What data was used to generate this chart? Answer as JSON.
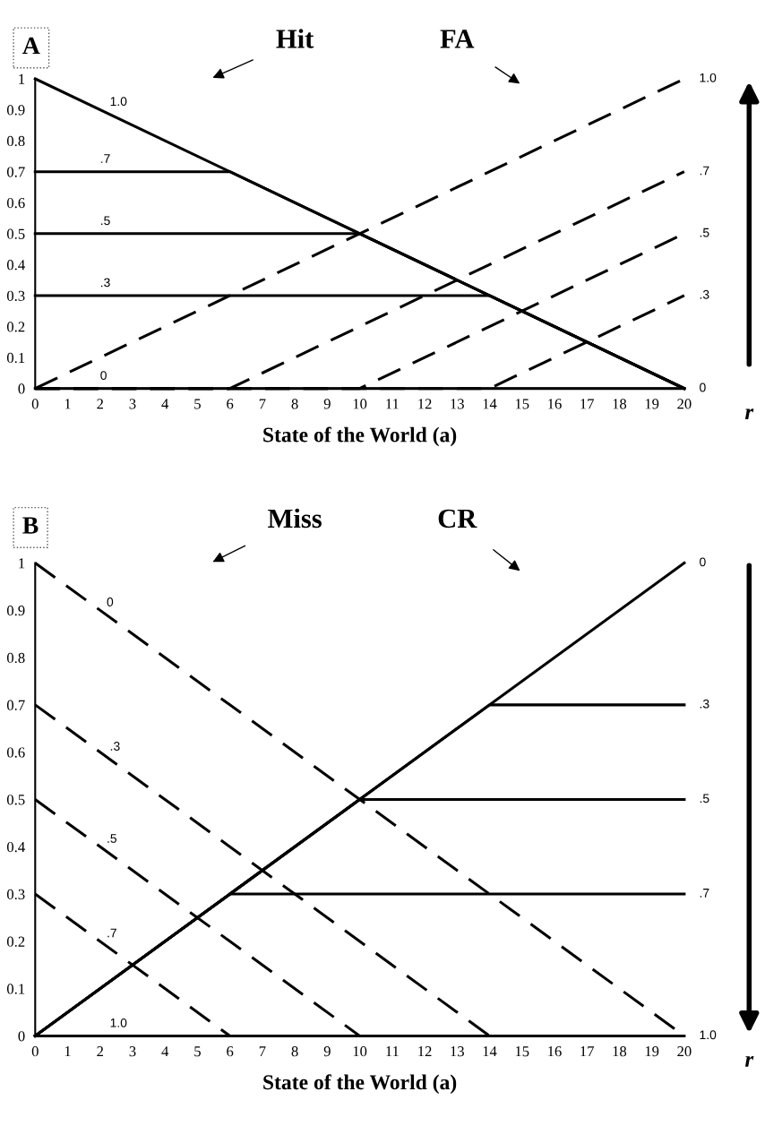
{
  "chart_data": [
    {
      "type": "line",
      "title": "A",
      "xlabel": "State of the World (a)",
      "xlim": [
        0,
        20
      ],
      "ylim": [
        0,
        1
      ],
      "xticks": [
        0,
        1,
        2,
        3,
        4,
        5,
        6,
        7,
        8,
        9,
        10,
        11,
        12,
        13,
        14,
        15,
        16,
        17,
        18,
        19,
        20
      ],
      "yticks": [
        0,
        0.1,
        0.2,
        0.3,
        0.4,
        0.5,
        0.6,
        0.7,
        0.8,
        0.9,
        1
      ],
      "grid": false,
      "legend": false,
      "marker": "none",
      "series": [
        {
          "x": [
            0,
            20
          ],
          "values": [
            1,
            0
          ],
          "color": "#000000",
          "line_style": "solid"
        },
        {
          "x": [
            0,
            6,
            20
          ],
          "values": [
            0.7,
            0.7,
            0
          ],
          "color": "#000000",
          "line_style": "solid"
        },
        {
          "x": [
            0,
            10,
            20
          ],
          "values": [
            0.5,
            0.5,
            0
          ],
          "color": "#000000",
          "line_style": "solid"
        },
        {
          "x": [
            0,
            14,
            20
          ],
          "values": [
            0.3,
            0.3,
            0
          ],
          "color": "#000000",
          "line_style": "solid"
        },
        {
          "x": [
            0,
            20
          ],
          "values": [
            0,
            0
          ],
          "color": "#000000",
          "line_style": "solid"
        },
        {
          "x": [
            0,
            20
          ],
          "values": [
            0,
            1
          ],
          "color": "#000000",
          "line_style": "dashed"
        },
        {
          "x": [
            0,
            6,
            20
          ],
          "values": [
            0,
            0,
            0.7
          ],
          "color": "#000000",
          "line_style": "dashed"
        },
        {
          "x": [
            0,
            10,
            20
          ],
          "values": [
            0,
            0,
            0.5
          ],
          "color": "#000000",
          "line_style": "dashed"
        },
        {
          "x": [
            0,
            14,
            20
          ],
          "values": [
            0,
            0,
            0.3
          ],
          "color": "#000000",
          "line_style": "dashed"
        }
      ],
      "annotations": [
        "Hit",
        "FA",
        "r",
        {
          "text": "1.0",
          "x": 2.3,
          "y": 0.885
        },
        {
          "text": ".7",
          "x": 2,
          "y": 0.7
        },
        {
          "text": ".5",
          "x": 2,
          "y": 0.5
        },
        {
          "text": ".3",
          "x": 2,
          "y": 0.3
        },
        {
          "text": "0",
          "x": 2,
          "y": 0
        },
        {
          "text": "1.0",
          "x": 20,
          "y": 1
        },
        {
          "text": ".7",
          "x": 20,
          "y": 0.7
        },
        {
          "text": ".5",
          "x": 20,
          "y": 0.5
        },
        {
          "text": ".3",
          "x": 20,
          "y": 0.3
        },
        {
          "text": "0",
          "x": 20,
          "y": 0
        }
      ]
    },
    {
      "type": "line",
      "title": "B",
      "xlabel": "State of the World (a)",
      "xlim": [
        0,
        20
      ],
      "ylim": [
        0,
        1
      ],
      "xticks": [
        0,
        1,
        2,
        3,
        4,
        5,
        6,
        7,
        8,
        9,
        10,
        11,
        12,
        13,
        14,
        15,
        16,
        17,
        18,
        19,
        20
      ],
      "yticks": [
        0,
        0.1,
        0.2,
        0.3,
        0.4,
        0.5,
        0.6,
        0.7,
        0.8,
        0.9,
        1
      ],
      "grid": false,
      "legend": false,
      "marker": "none",
      "series": [
        {
          "x": [
            0,
            20
          ],
          "values": [
            1,
            0
          ],
          "color": "#000000",
          "line_style": "dashed"
        },
        {
          "x": [
            0,
            14,
            20
          ],
          "values": [
            0.7,
            0,
            0
          ],
          "color": "#000000",
          "line_style": "dashed"
        },
        {
          "x": [
            0,
            10,
            20
          ],
          "values": [
            0.5,
            0,
            0
          ],
          "color": "#000000",
          "line_style": "dashed"
        },
        {
          "x": [
            0,
            6,
            20
          ],
          "values": [
            0.3,
            0,
            0
          ],
          "color": "#000000",
          "line_style": "dashed"
        },
        {
          "x": [
            0,
            20
          ],
          "values": [
            0,
            1
          ],
          "color": "#000000",
          "line_style": "solid"
        },
        {
          "x": [
            0,
            14,
            20
          ],
          "values": [
            0,
            0.7,
            0.7
          ],
          "color": "#000000",
          "line_style": "solid"
        },
        {
          "x": [
            0,
            10,
            20
          ],
          "values": [
            0,
            0.5,
            0.5
          ],
          "color": "#000000",
          "line_style": "solid"
        },
        {
          "x": [
            0,
            6,
            20
          ],
          "values": [
            0,
            0.3,
            0.3
          ],
          "color": "#000000",
          "line_style": "solid"
        },
        {
          "x": [
            0,
            20
          ],
          "values": [
            0,
            0
          ],
          "color": "#000000",
          "line_style": "solid"
        }
      ],
      "annotations": [
        "Miss",
        "CR",
        "r",
        {
          "text": "0",
          "x": 2.2,
          "y": 0.89
        },
        {
          "text": ".3",
          "x": 2.3,
          "y": 0.585
        },
        {
          "text": ".5",
          "x": 2.2,
          "y": 0.39
        },
        {
          "text": ".7",
          "x": 2.2,
          "y": 0.19
        },
        {
          "text": "1.0",
          "x": 2.3,
          "y": 0
        },
        {
          "text": "0",
          "x": 20,
          "y": 1
        },
        {
          "text": ".3",
          "x": 20,
          "y": 0.7
        },
        {
          "text": ".5",
          "x": 20,
          "y": 0.5
        },
        {
          "text": ".7",
          "x": 20,
          "y": 0.3
        },
        {
          "text": "1.0",
          "x": 20,
          "y": 0
        }
      ]
    }
  ]
}
